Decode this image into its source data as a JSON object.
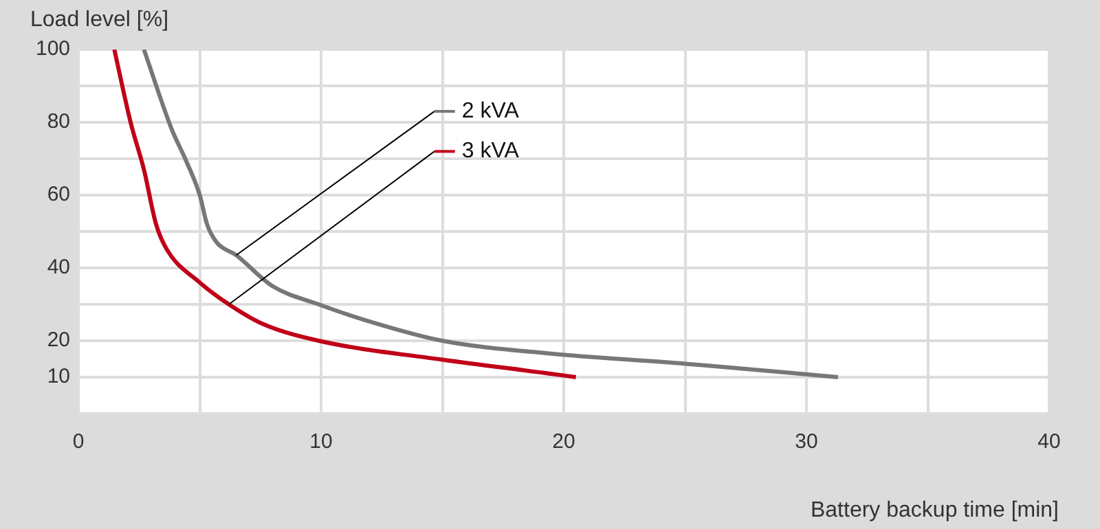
{
  "chart_data": {
    "type": "line",
    "xlabel": "Battery backup time [min]",
    "ylabel": "Load level [%]",
    "xlim": [
      0,
      40
    ],
    "xticks": [
      0,
      {
        "value": 5,
        "label": null
      },
      10,
      {
        "value": 15,
        "label": null
      },
      20,
      {
        "value": 25,
        "label": null
      },
      30,
      {
        "value": 35,
        "label": null
      },
      40
    ],
    "ylim": [
      0,
      100
    ],
    "yticks": [
      {
        "value": 0,
        "label": null
      },
      10,
      20,
      {
        "value": 30,
        "label": null
      },
      40,
      {
        "value": 50,
        "label": null
      },
      60,
      {
        "value": 70,
        "label": null
      },
      80,
      {
        "value": 90,
        "label": null
      },
      100
    ],
    "grid": true,
    "legend": "top",
    "marker": "none",
    "line_style": "solid",
    "series": [
      {
        "name": "2 kVA",
        "color": "#777777",
        "x": [
          2.7,
          3.85,
          4.4,
          5.0,
          5.3,
          5.7,
          6.5,
          8.0,
          9.9,
          11.8,
          15.0,
          19.4,
          25.0,
          31.3
        ],
        "values": [
          100,
          78,
          70,
          60,
          52,
          47,
          43.5,
          35,
          30,
          25.7,
          20,
          16.5,
          13.7,
          10
        ]
      },
      {
        "name": "3 kVA",
        "color": "#c00018",
        "x": [
          1.48,
          2.15,
          2.7,
          3.2,
          3.65,
          5.0,
          6.2,
          7.6,
          9.9,
          15.0,
          19.4,
          20.5
        ],
        "values": [
          100,
          80,
          67,
          52,
          45,
          36,
          30,
          24.6,
          20,
          14.8,
          11,
          10
        ]
      }
    ]
  }
}
